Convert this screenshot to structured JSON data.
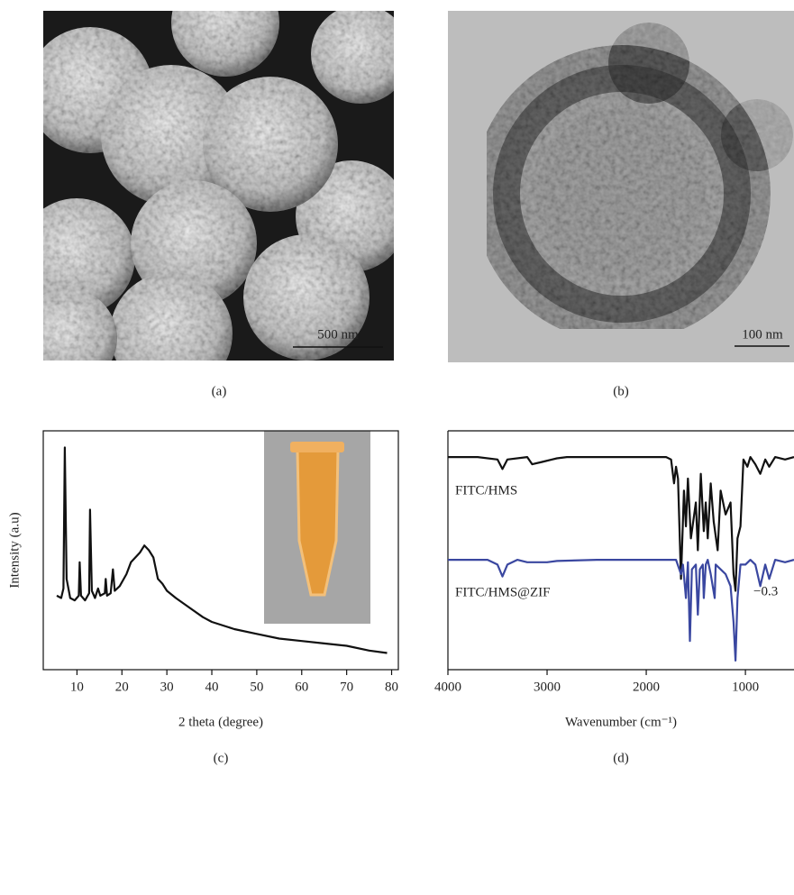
{
  "panels": {
    "a": {
      "label": "(a)",
      "scale_bar": "500 nm"
    },
    "b": {
      "label": "(b)",
      "scale_bar": "100 nm"
    }
  },
  "chart_data": [
    {
      "type": "line",
      "panel_label": "(c)",
      "xlabel": "2 theta (degree)",
      "ylabel": "Intensity (a.u)",
      "xlim": [
        2.5,
        81.5
      ],
      "ylim": [
        0,
        100
      ],
      "xticks": [
        10,
        20,
        30,
        40,
        50,
        60,
        70,
        80
      ],
      "series": [
        {
          "color": "#111111",
          "x": [
            5.5,
            6.5,
            7.0,
            7.3,
            7.7,
            8.5,
            9.5,
            10.4,
            10.6,
            10.9,
            11.8,
            12.7,
            12.9,
            13.3,
            14.0,
            14.7,
            15.2,
            16.2,
            16.4,
            16.7,
            17.5,
            18.0,
            18.4,
            19.5,
            21,
            22,
            23,
            24,
            25,
            26,
            27,
            28,
            29,
            30,
            32,
            35,
            38,
            40,
            45,
            50,
            55,
            60,
            65,
            70,
            75,
            79
          ],
          "values": [
            31,
            30,
            34,
            93,
            38,
            30,
            29,
            31,
            45,
            31,
            29,
            32,
            67,
            33,
            30,
            34,
            31,
            32,
            38,
            31,
            32,
            42,
            33,
            35,
            40,
            45,
            47,
            49,
            52,
            50,
            47,
            38,
            36,
            33,
            30,
            26,
            22,
            20,
            17,
            15,
            13,
            12,
            11,
            10,
            8,
            7
          ]
        }
      ]
    },
    {
      "type": "line",
      "panel_label": "(d)",
      "xlabel": "Wavenumber (cm⁻¹)",
      "annotations": [
        "−0.3"
      ],
      "xlim": [
        4000,
        510
      ],
      "ylim": [
        0,
        100
      ],
      "xticks": [
        4000,
        3000,
        2000,
        1000
      ],
      "series": [
        {
          "name": "FITC/HMS",
          "color": "#111111",
          "x": [
            4000,
            3700,
            3500,
            3450,
            3400,
            3200,
            3150,
            3050,
            2950,
            2900,
            2800,
            2500,
            2000,
            1800,
            1750,
            1720,
            1700,
            1680,
            1650,
            1620,
            1600,
            1580,
            1550,
            1500,
            1480,
            1450,
            1420,
            1400,
            1380,
            1350,
            1320,
            1280,
            1250,
            1200,
            1150,
            1120,
            1100,
            1080,
            1050,
            1020,
            980,
            950,
            900,
            850,
            800,
            760,
            700,
            600,
            510
          ],
          "values": [
            89,
            89,
            88,
            84,
            88,
            89,
            86,
            87,
            88,
            88.5,
            89,
            89,
            89,
            89,
            88,
            78,
            85,
            80,
            38,
            75,
            60,
            80,
            55,
            70,
            50,
            82,
            58,
            70,
            55,
            78,
            62,
            50,
            75,
            65,
            70,
            40,
            33,
            55,
            60,
            88,
            85,
            89,
            86,
            82,
            88,
            85,
            89,
            88,
            89
          ]
        },
        {
          "name": "FITC/HMS@ZIF",
          "color": "#3a47a0",
          "x": [
            4000,
            3600,
            3500,
            3450,
            3400,
            3300,
            3200,
            3000,
            2900,
            2500,
            2000,
            1700,
            1650,
            1630,
            1600,
            1580,
            1560,
            1540,
            1500,
            1480,
            1460,
            1430,
            1420,
            1400,
            1380,
            1350,
            1310,
            1300,
            1250,
            1200,
            1150,
            1120,
            1100,
            1080,
            1050,
            1000,
            950,
            900,
            850,
            800,
            760,
            700,
            600,
            510
          ],
          "values": [
            46,
            46,
            44,
            39,
            44,
            46,
            45,
            45,
            45.5,
            46,
            46,
            46,
            40,
            44,
            30,
            45,
            12,
            42,
            44,
            23,
            42,
            44,
            30,
            44,
            46,
            40,
            30,
            44,
            42,
            40,
            35,
            20,
            3.8,
            30,
            44,
            44,
            46,
            44,
            35,
            44,
            38,
            46,
            45,
            46
          ]
        }
      ]
    }
  ]
}
